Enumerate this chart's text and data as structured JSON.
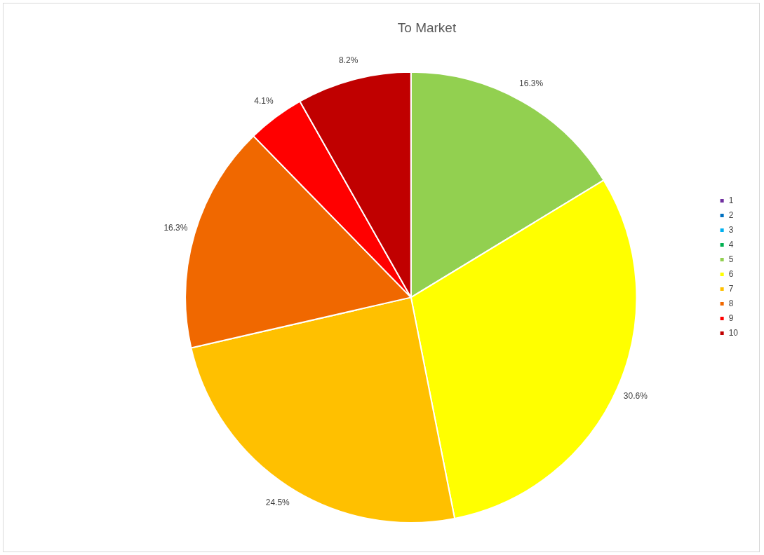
{
  "chart_data": {
    "type": "pie",
    "title": "To Market",
    "categories": [
      "1",
      "2",
      "3",
      "4",
      "5",
      "6",
      "7",
      "8",
      "9",
      "10"
    ],
    "values": [
      0,
      0,
      0,
      0,
      16.3,
      30.6,
      24.5,
      16.3,
      4.1,
      8.2
    ],
    "colors": [
      "#7030a0",
      "#0070c0",
      "#00b0f0",
      "#00b050",
      "#92d050",
      "#ffff00",
      "#ffc000",
      "#f06800",
      "#ff0000",
      "#c00000"
    ],
    "value_labels": [
      null,
      null,
      null,
      null,
      "16.3%",
      "30.6%",
      "24.5%",
      "16.3%",
      "4.1%",
      "8.2%"
    ],
    "legend": "right"
  }
}
